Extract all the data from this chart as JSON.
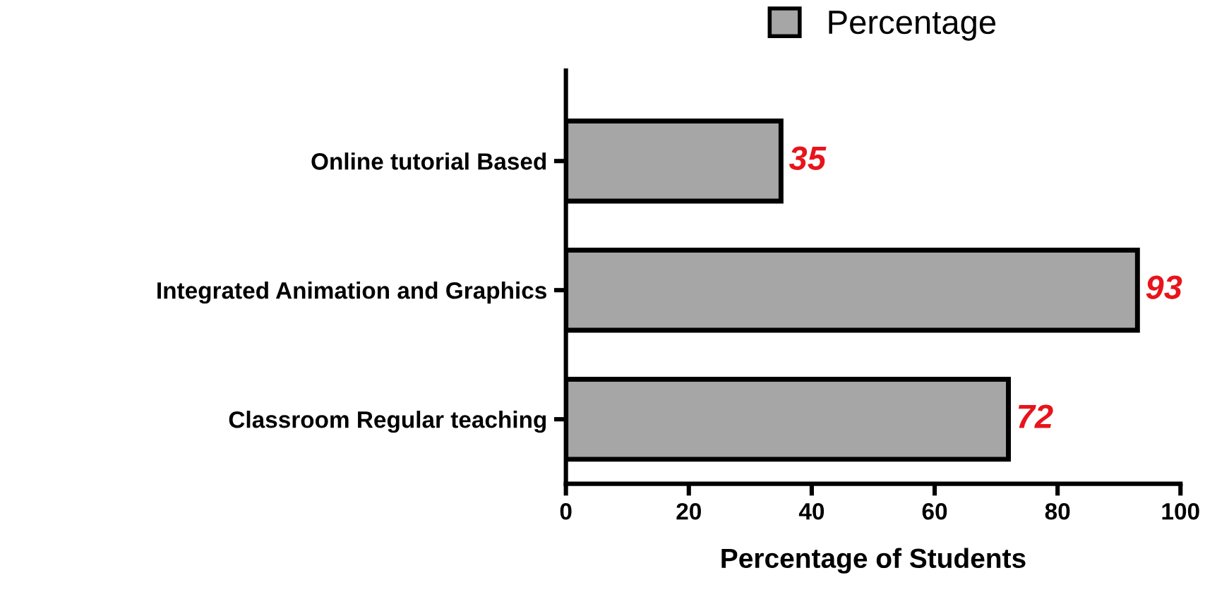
{
  "chart_data": {
    "type": "bar",
    "orientation": "horizontal",
    "xlabel": "Percentage of Students",
    "categories": [
      "Online tutorial Based",
      "Integrated Animation and Graphics",
      "Classroom Regular teaching"
    ],
    "series": [
      {
        "name": "Percentage",
        "color": "#a6a6a6",
        "values": [
          35,
          93,
          72
        ]
      }
    ],
    "xlim": [
      0,
      100
    ],
    "xticks": [
      0,
      20,
      40,
      60,
      80,
      100
    ],
    "grid": false,
    "legend": "top right",
    "data_labels": true
  }
}
